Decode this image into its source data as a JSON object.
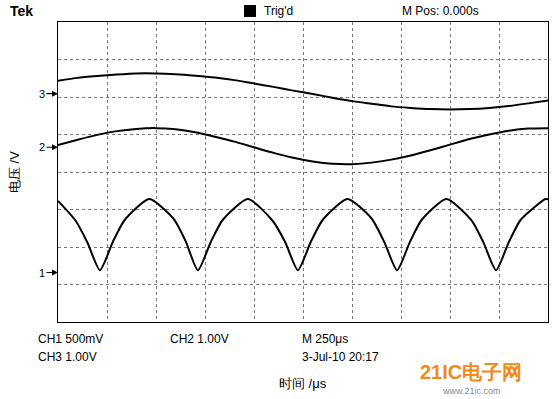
{
  "chart_data": {
    "type": "line",
    "xlabel": "时间 /μs",
    "ylabel": "电压 /V",
    "header": [
      "Tek",
      "Trig'd",
      "M Pos: 0.000s"
    ],
    "footer": [
      "CH1 500mV",
      "CH2 1.00V",
      "M 250μs",
      "CH3 1.00V",
      "3-Jul-10 20:17"
    ],
    "watermark": [
      "21IC电子网",
      "www.21ic.com"
    ],
    "channel_markers": [
      {
        "text": "3",
        "y": 2.09
      },
      {
        "text": "2",
        "y": 0.66
      },
      {
        "text": "1",
        "y": -2.68
      }
    ],
    "xlim": [
      0,
      2500
    ],
    "xticks": [
      0,
      250,
      500,
      750,
      1000,
      1250,
      1500,
      1750,
      2000,
      2250,
      2500
    ],
    "ylim": [
      -4,
      4
    ],
    "yticks": [
      -4,
      -3,
      -2,
      -1,
      0,
      1,
      2,
      3,
      4
    ],
    "grid": true,
    "tick_labels": false,
    "series": [
      {
        "color": "#000000",
        "x": [
          0,
          100,
          200,
          300,
          400,
          500,
          600,
          700,
          800,
          900,
          1000,
          1100,
          1200,
          1300,
          1400,
          1500,
          1600,
          1700,
          1800,
          1900,
          2000,
          2100,
          2200,
          2300,
          2400,
          2500
        ],
        "values": [
          2.43,
          2.51,
          2.56,
          2.6,
          2.63,
          2.63,
          2.61,
          2.57,
          2.52,
          2.45,
          2.36,
          2.27,
          2.17,
          2.08,
          1.98,
          1.89,
          1.82,
          1.75,
          1.71,
          1.68,
          1.67,
          1.68,
          1.71,
          1.76,
          1.83,
          1.91
        ]
      },
      {
        "color": "#000000",
        "x": [
          0,
          100,
          200,
          300,
          400,
          500,
          600,
          700,
          800,
          900,
          1000,
          1100,
          1200,
          1300,
          1400,
          1500,
          1600,
          1700,
          1800,
          1900,
          2000,
          2100,
          2200,
          2300,
          2400,
          2500
        ],
        "values": [
          0.72,
          0.86,
          0.99,
          1.09,
          1.15,
          1.17,
          1.14,
          1.06,
          0.94,
          0.81,
          0.66,
          0.51,
          0.38,
          0.28,
          0.22,
          0.21,
          0.25,
          0.33,
          0.44,
          0.58,
          0.73,
          0.88,
          1.0,
          1.1,
          1.16,
          1.17
        ]
      },
      {
        "color": "#000000",
        "x": [
          0,
          90,
          150,
          214,
          280,
          340,
          466,
          590,
          650,
          714,
          780,
          840,
          969,
          1095,
          1160,
          1224,
          1290,
          1350,
          1477,
          1600,
          1665,
          1730,
          1795,
          1855,
          1982,
          2110,
          2170,
          2235,
          2300,
          2360,
          2487,
          2500
        ],
        "values": [
          -0.77,
          -1.3,
          -1.88,
          -2.62,
          -1.86,
          -1.28,
          -0.72,
          -1.25,
          -1.83,
          -2.62,
          -1.86,
          -1.28,
          -0.72,
          -1.3,
          -1.88,
          -2.62,
          -1.86,
          -1.28,
          -0.72,
          -1.24,
          -1.87,
          -2.62,
          -1.87,
          -1.28,
          -0.72,
          -1.29,
          -1.87,
          -2.62,
          -1.87,
          -1.28,
          -0.72,
          -0.73
        ]
      }
    ]
  }
}
